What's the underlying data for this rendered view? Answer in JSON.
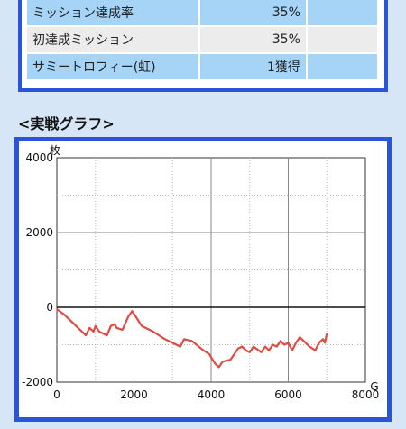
{
  "stats": {
    "rows": [
      {
        "label": "ミッション達成率",
        "value": "35%"
      },
      {
        "label": "初達成ミッション",
        "value": "35%"
      },
      {
        "label": "サミートロフィー(虹)",
        "value": "1獲得"
      }
    ]
  },
  "section": {
    "title": "<実戦グラフ>"
  },
  "colors": {
    "frame": "#2a55d8",
    "line": "#e04b43",
    "row_highlight": "#a6d4f7"
  },
  "chart_data": {
    "type": "line",
    "ylabel": "枚",
    "xlabel": "G",
    "xlim": [
      0,
      8000
    ],
    "ylim": [
      -2000,
      4000
    ],
    "x_ticks": [
      0,
      2000,
      4000,
      6000,
      8000
    ],
    "y_ticks": [
      4000,
      2000,
      0,
      -2000
    ],
    "x_tick_labels": [
      "0",
      "2000",
      "4000",
      "6000",
      "8000"
    ],
    "y_tick_labels": [
      "4000",
      "2000",
      "0",
      "-2000"
    ],
    "grid": true,
    "series": [
      {
        "x": [
          0,
          200,
          400,
          600,
          750,
          850,
          950,
          1000,
          1100,
          1300,
          1400,
          1500,
          1550,
          1700,
          1850,
          1950,
          2050,
          2200,
          2500,
          2800,
          3000,
          3200,
          3300,
          3500,
          3800,
          3950,
          4100,
          4200,
          4300,
          4500,
          4700,
          4800,
          4900,
          5000,
          5100,
          5300,
          5400,
          5500,
          5600,
          5700,
          5800,
          5900,
          6000,
          6100,
          6200,
          6300,
          6400,
          6550,
          6700,
          6800,
          6900,
          6950,
          7000
        ],
        "y": [
          -50,
          -200,
          -400,
          -600,
          -750,
          -550,
          -650,
          -500,
          -650,
          -750,
          -500,
          -450,
          -550,
          -600,
          -250,
          -100,
          -250,
          -500,
          -650,
          -850,
          -950,
          -1050,
          -850,
          -900,
          -1150,
          -1250,
          -1500,
          -1600,
          -1450,
          -1400,
          -1100,
          -1050,
          -1150,
          -1200,
          -1050,
          -1200,
          -1050,
          -1150,
          -1000,
          -1050,
          -900,
          -1000,
          -950,
          -1150,
          -950,
          -800,
          -900,
          -1050,
          -1150,
          -950,
          -850,
          -950,
          -700
        ]
      }
    ]
  }
}
